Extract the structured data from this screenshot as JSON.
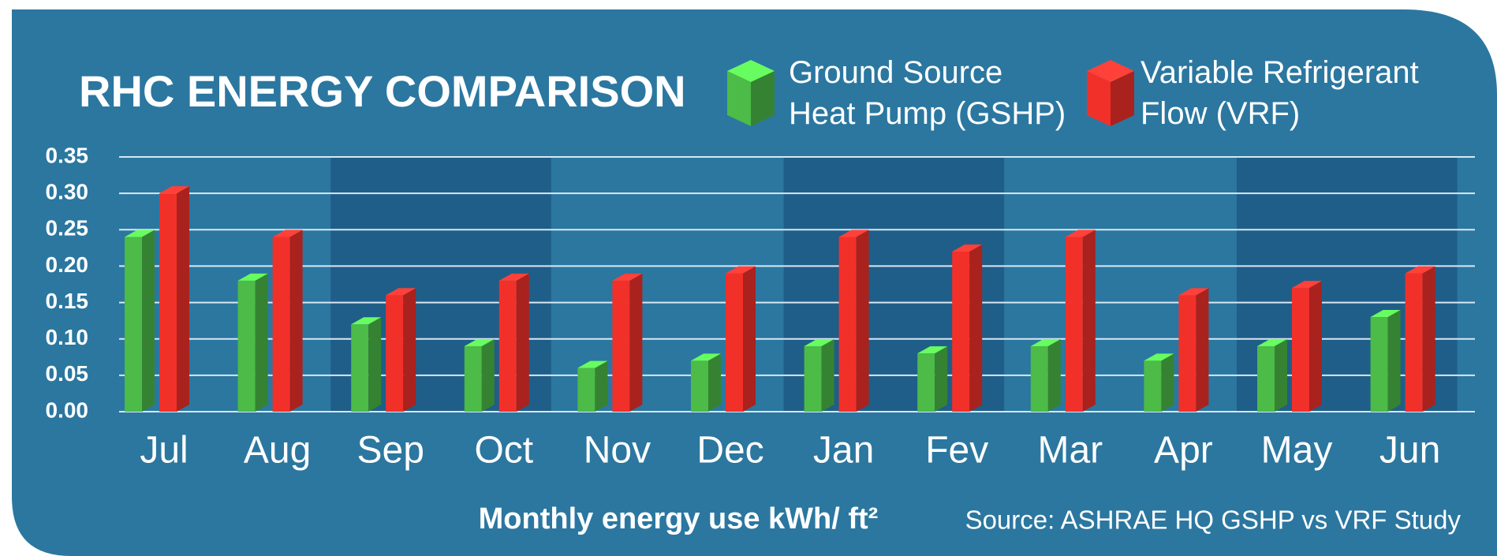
{
  "chart_data": {
    "type": "bar",
    "title": "RHC ENERGY COMPARISON",
    "x_axis_label": "Monthly energy use kWh/ ft²",
    "source": "Source: ASHRAE HQ GSHP vs VRF Study",
    "categories": [
      "Jul",
      "Aug",
      "Sep",
      "Oct",
      "Nov",
      "Dec",
      "Jan",
      "Fev",
      "Mar",
      "Apr",
      "May",
      "Jun"
    ],
    "series": [
      {
        "name": "Ground Source Heat Pump (GSHP)",
        "color": "#4cbb47",
        "values": [
          0.24,
          0.18,
          0.12,
          0.09,
          0.06,
          0.07,
          0.09,
          0.08,
          0.09,
          0.07,
          0.09,
          0.13
        ]
      },
      {
        "name": "Variable Refrigerant Flow (VRF)",
        "color": "#f2302a",
        "values": [
          0.3,
          0.24,
          0.16,
          0.18,
          0.18,
          0.19,
          0.24,
          0.22,
          0.24,
          0.16,
          0.17,
          0.19
        ]
      }
    ],
    "ylim": [
      0,
      0.35
    ],
    "yticks": [
      {
        "value": 0,
        "label": "0.00"
      },
      {
        "value": 0.05,
        "label": "0.05"
      },
      {
        "value": 0.1,
        "label": "0.10"
      },
      {
        "value": 0.15,
        "label": "0.15"
      },
      {
        "value": 0.2,
        "label": "0.20"
      },
      {
        "value": 0.25,
        "label": "0.25"
      },
      {
        "value": 0.3,
        "label": "0.30"
      },
      {
        "value": 0.35,
        "label": "0.35"
      }
    ],
    "grid": true
  }
}
